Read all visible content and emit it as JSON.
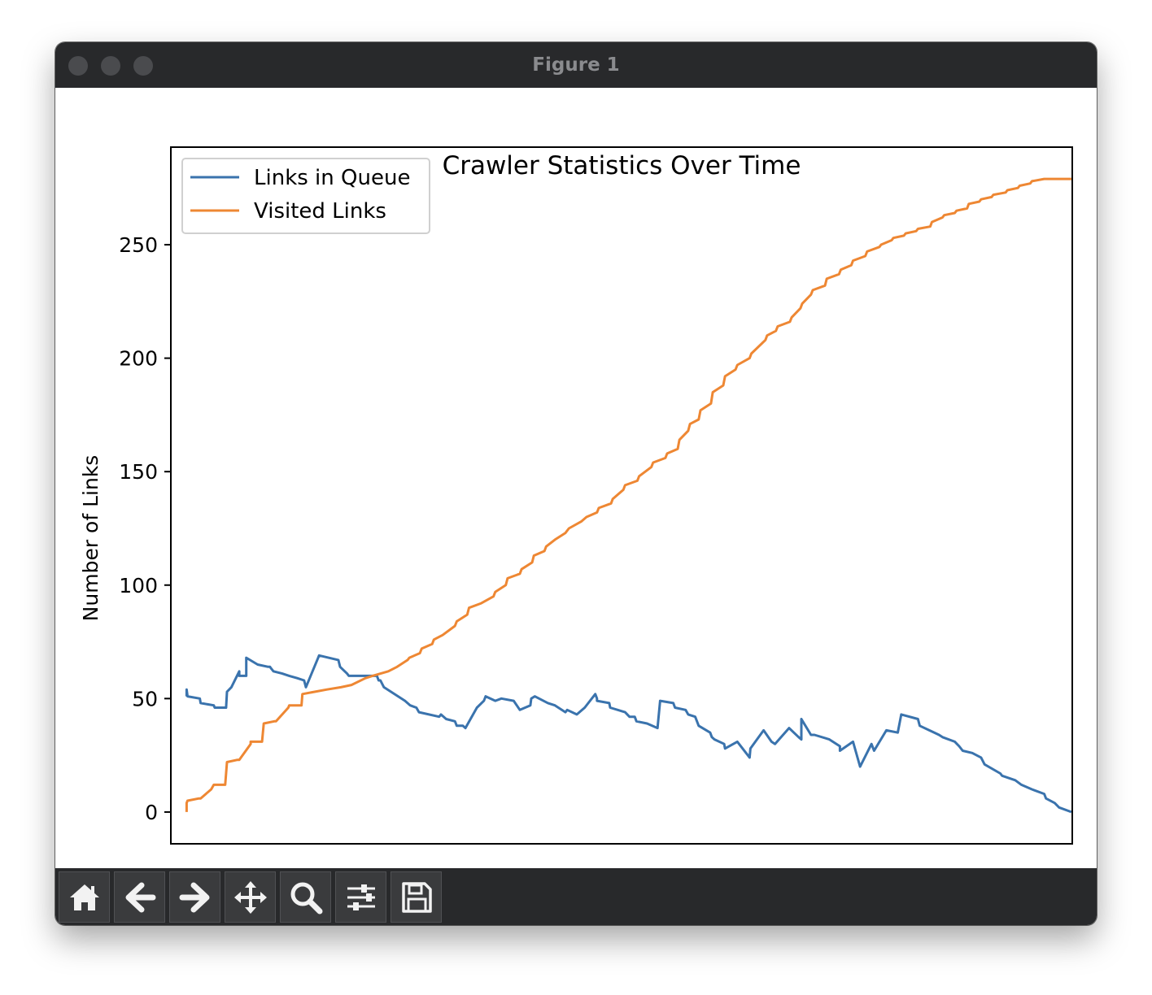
{
  "window": {
    "title": "Figure 1"
  },
  "toolbar": {
    "buttons": [
      {
        "name": "home-icon"
      },
      {
        "name": "back-arrow-icon"
      },
      {
        "name": "forward-arrow-icon"
      },
      {
        "name": "pan-move-icon"
      },
      {
        "name": "zoom-magnifier-icon"
      },
      {
        "name": "subplots-config-icon"
      },
      {
        "name": "save-floppy-icon"
      }
    ]
  },
  "colors": {
    "queue": "#3a73ad",
    "visited": "#ee8733",
    "titlebar": "#28292b"
  },
  "chart_data": {
    "type": "line",
    "title": "Crawler Statistics Over Time",
    "xlabel": "",
    "ylabel": "Number of Links",
    "ylim": [
      -14,
      293
    ],
    "xlim": [
      -18,
      1010
    ],
    "yticks": [
      "0",
      "50",
      "100",
      "150",
      "200",
      "250"
    ],
    "ytick_values": [
      0,
      50,
      100,
      150,
      200,
      250
    ],
    "x_ticks_shown": false,
    "legend_position": "upper left",
    "grid": false,
    "series": [
      {
        "name": "Links in Queue",
        "color": "#3a73ad",
        "x": [
          0,
          0,
          1,
          15,
          16,
          31,
          32,
          45,
          46,
          51,
          60,
          60,
          68,
          68,
          81,
          93,
          95,
          97,
          99,
          109,
          117,
          126,
          134,
          136,
          150,
          151,
          173,
          175,
          183,
          185,
          217,
          219,
          221,
          225,
          249,
          255,
          262,
          265,
          288,
          290,
          296,
          306,
          308,
          308,
          315,
          318,
          331,
          339,
          341,
          352,
          359,
          373,
          380,
          392,
          393,
          397,
          412,
          420,
          432,
          434,
          445,
          454,
          466,
          468,
          468,
          482,
          483,
          500,
          505,
          511,
          513,
          525,
          537,
          540,
          555,
          557,
          569,
          572,
          580,
          584,
          597,
          599,
          602,
          613,
          614,
          628,
          642,
          643,
          658,
          667,
          671,
          687,
          698,
          701,
          701,
          712,
          716,
          733,
          745,
          745,
          760,
          768,
          781,
          784,
          798,
          811,
          815,
          834,
          836,
          858,
          862,
          876,
          881,
          885,
          896,
          906,
          910,
          928,
          930,
          945,
          952,
          964,
          978,
          980,
          990,
          995,
          1009
        ],
        "y": [
          51,
          54,
          51,
          50,
          48,
          47,
          46,
          46,
          53,
          55,
          62,
          60,
          60,
          68,
          65,
          64,
          64,
          63,
          62,
          61,
          60,
          59,
          58,
          55,
          68,
          69,
          67,
          64,
          61,
          60,
          60,
          58,
          58,
          55,
          49,
          47,
          46,
          44,
          42,
          43,
          41,
          40,
          38,
          38,
          38,
          37,
          46,
          49,
          51,
          49,
          50,
          49,
          45,
          47,
          50,
          51,
          48,
          47,
          44,
          45,
          43,
          46,
          52,
          50,
          49,
          48,
          46,
          44,
          42,
          42,
          40,
          39,
          37,
          49,
          48,
          46,
          45,
          43,
          42,
          38,
          35,
          33,
          32,
          30,
          28,
          31,
          24,
          28,
          36,
          31,
          30,
          37,
          33,
          32,
          41,
          34,
          34,
          32,
          29,
          27,
          31,
          20,
          30,
          27,
          36,
          35,
          43,
          41,
          38,
          34,
          33,
          31,
          29,
          27,
          26,
          24,
          21,
          17,
          16,
          14,
          12,
          10,
          8,
          6,
          4,
          2,
          0
        ]
      },
      {
        "name": "Visited Links",
        "color": "#ee8733",
        "x": [
          0,
          0,
          1,
          14,
          16,
          28,
          31,
          44,
          46,
          58,
          60,
          73,
          73,
          86,
          88,
          100,
          102,
          116,
          117,
          131,
          132,
          146,
          160,
          176,
          188,
          204,
          212,
          230,
          240,
          252,
          254,
          266,
          268,
          280,
          282,
          292,
          306,
          308,
          320,
          322,
          336,
          350,
          352,
          364,
          366,
          380,
          382,
          394,
          396,
          408,
          410,
          420,
          432,
          436,
          450,
          456,
          468,
          470,
          484,
          486,
          498,
          500,
          514,
          516,
          530,
          532,
          546,
          548,
          560,
          562,
          572,
          574,
          584,
          586,
          598,
          600,
          612,
          614,
          626,
          628,
          642,
          644,
          660,
          662,
          672,
          674,
          688,
          690,
          700,
          702,
          712,
          714,
          728,
          730,
          744,
          746,
          758,
          760,
          774,
          776,
          790,
          792,
          804,
          806,
          818,
          820,
          832,
          834,
          848,
          850,
          862,
          864,
          876,
          878,
          890,
          892,
          904,
          906,
          918,
          920,
          934,
          936,
          948,
          950,
          962,
          964,
          978,
          980,
          994,
          996,
          1009
        ],
        "y": [
          0,
          4,
          5,
          6,
          6,
          10,
          12,
          12,
          22,
          23,
          23,
          30,
          31,
          31,
          39,
          40,
          40,
          46,
          47,
          47,
          52,
          53,
          54,
          55,
          56,
          59,
          60,
          62,
          64,
          67,
          68,
          70,
          72,
          74,
          76,
          78,
          82,
          84,
          87,
          90,
          92,
          95,
          97,
          100,
          103,
          105,
          107,
          110,
          113,
          115,
          117,
          120,
          123,
          125,
          128,
          130,
          132,
          134,
          136,
          138,
          142,
          144,
          146,
          148,
          152,
          154,
          156,
          158,
          160,
          164,
          168,
          171,
          173,
          177,
          180,
          185,
          188,
          192,
          195,
          197,
          200,
          202,
          208,
          210,
          212,
          214,
          216,
          218,
          222,
          224,
          228,
          230,
          232,
          235,
          237,
          239,
          241,
          243,
          245,
          247,
          249,
          250,
          252,
          253,
          254,
          255,
          256,
          257,
          258,
          260,
          262,
          263,
          264,
          265,
          266,
          268,
          269,
          270,
          271,
          272,
          273,
          274,
          275,
          276,
          277,
          278,
          279,
          279,
          279,
          279,
          279
        ]
      }
    ]
  }
}
